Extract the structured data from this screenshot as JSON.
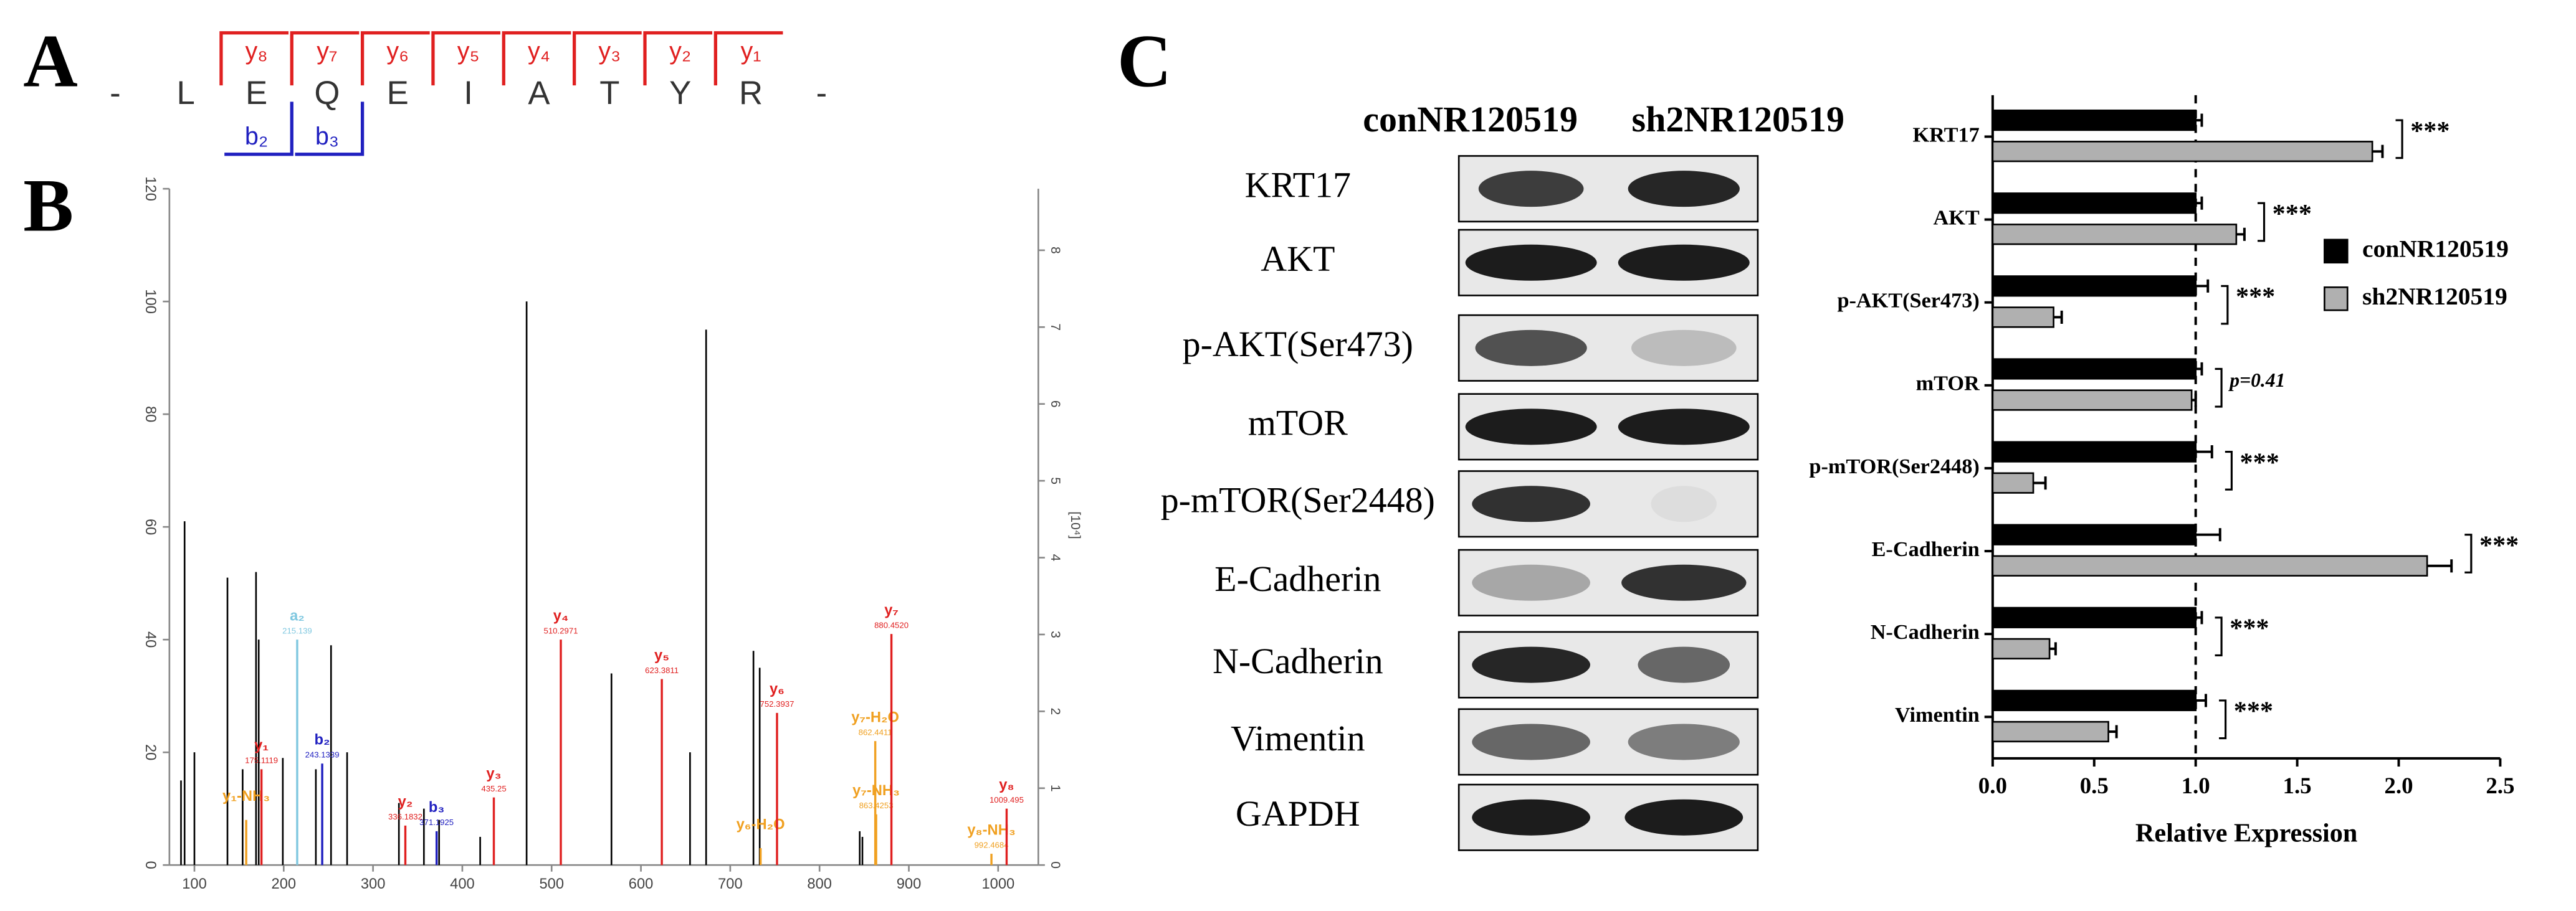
{
  "panels": [
    "A",
    "B",
    "C"
  ],
  "peptide": {
    "residues": [
      "-",
      "L",
      "E",
      "Q",
      "E",
      "I",
      "A",
      "T",
      "Y",
      "R",
      "-"
    ],
    "y_ions": [
      "y₈",
      "y₇",
      "y₆",
      "y₅",
      "y₄",
      "y₃",
      "y₂",
      "y₁"
    ],
    "b_ions": [
      "b₂",
      "b₃"
    ]
  },
  "blot": {
    "columns": [
      "conNR120519",
      "sh2NR120519"
    ],
    "rows": [
      "KRT17",
      "AKT",
      "p-AKT(Ser473)",
      "mTOR",
      "p-mTOR(Ser2448)",
      "E-Cadherin",
      "N-Cadherin",
      "Vimentin",
      "GAPDH"
    ]
  },
  "chart_data": [
    {
      "type": "spectrum",
      "y2_label": "[10⁴]",
      "xlim": [
        72,
        1045
      ],
      "xticks": [
        100,
        200,
        300,
        400,
        500,
        600,
        700,
        800,
        900,
        1000
      ],
      "ylim": [
        0,
        120
      ],
      "yticks": [
        0,
        20,
        40,
        60,
        80,
        100,
        120
      ],
      "y2lim": [
        0,
        8.8
      ],
      "y2ticks": [
        0,
        1,
        2,
        3,
        4,
        5,
        6,
        7,
        8
      ],
      "series": [
        {
          "color": "#000000",
          "x": [
            85,
            89,
            100,
            137,
            154,
            169,
            172,
            199,
            236,
            253,
            271,
            329,
            357,
            374,
            420,
            472,
            567,
            655,
            673,
            726,
            733,
            845,
            848
          ],
          "values": [
            15,
            61,
            20,
            51,
            17,
            52,
            40,
            19,
            17,
            39,
            20,
            11,
            10,
            8,
            5,
            100,
            34,
            20,
            95,
            38,
            35,
            6,
            5
          ]
        }
      ],
      "annotations": [
        {
          "label": "y₁-NH₃",
          "x": 158,
          "y": 8,
          "color": "#f0a020"
        },
        {
          "label": "y₁",
          "mz": "175.1119",
          "x": 175.1,
          "y": 17,
          "color": "#e02020"
        },
        {
          "label": "a₂",
          "mz": "215.139",
          "x": 215.1,
          "y": 40,
          "color": "#80c8e0"
        },
        {
          "label": "b₂",
          "mz": "243.1339",
          "x": 243.1,
          "y": 18,
          "color": "#2020c0"
        },
        {
          "label": "y₂",
          "mz": "336.1832",
          "x": 336.2,
          "y": 7,
          "color": "#e02020"
        },
        {
          "label": "b₃",
          "mz": "371.1925",
          "x": 371.2,
          "y": 6,
          "color": "#2020c0"
        },
        {
          "label": "y₃",
          "mz": "435.25",
          "x": 435.3,
          "y": 12,
          "color": "#e02020"
        },
        {
          "label": "y₄",
          "mz": "510.2971",
          "x": 510.3,
          "y": 40,
          "color": "#e02020"
        },
        {
          "label": "y₅",
          "mz": "623.3811",
          "x": 623.4,
          "y": 33,
          "color": "#e02020"
        },
        {
          "label": "y₆-H₂O",
          "x": 734,
          "y": 3,
          "color": "#f0a020"
        },
        {
          "label": "y₆",
          "mz": "752.3937",
          "x": 752.4,
          "y": 27,
          "color": "#e02020"
        },
        {
          "label": "y₇-NH₃",
          "mz": "863.4253",
          "x": 863.4,
          "y": 9,
          "color": "#f0a020"
        },
        {
          "label": "y₇-H₂O",
          "mz": "862.4411",
          "x": 862.4,
          "y": 22,
          "color": "#f0a020"
        },
        {
          "label": "y₇",
          "mz": "880.4520",
          "x": 880.5,
          "y": 41,
          "color": "#e02020"
        },
        {
          "label": "y₈-NH₃",
          "mz": "992.4684",
          "x": 992.5,
          "y": 2,
          "color": "#f0a020"
        },
        {
          "label": "y₈",
          "mz": "1009.495",
          "x": 1009.5,
          "y": 10,
          "color": "#e02020"
        }
      ]
    },
    {
      "type": "hbar",
      "xlabel": "Relative Expression",
      "categories": [
        "KRT17",
        "AKT",
        "p-AKT(Ser473)",
        "mTOR",
        "p-mTOR(Ser2448)",
        "E-Cadherin",
        "N-Cadherin",
        "Vimentin"
      ],
      "series": [
        {
          "name": "conNR120519",
          "color": "#000000",
          "values": [
            1,
            1,
            1,
            1,
            1,
            1,
            1,
            1
          ],
          "errors": [
            0.03,
            0.03,
            0.06,
            0.03,
            0.08,
            0.12,
            0.03,
            0.05
          ]
        },
        {
          "name": "sh2NR120519",
          "color": "#b0b0b0",
          "values": [
            1.87,
            1.2,
            0.3,
            0.98,
            0.2,
            2.14,
            0.28,
            0.57
          ],
          "errors": [
            0.05,
            0.04,
            0.04,
            0.02,
            0.06,
            0.12,
            0.03,
            0.04
          ]
        }
      ],
      "significance": [
        "***",
        "***",
        "***",
        "p=0.41",
        "***",
        "***",
        "***",
        "***"
      ],
      "xlim": [
        0,
        2.5
      ],
      "xticks": [
        {
          "value": 0,
          "label": "0.0"
        },
        0.5,
        {
          "value": 1,
          "label": "1.0"
        },
        1.5,
        {
          "value": 2,
          "label": "2.0"
        },
        2.5
      ],
      "reference_line": 1
    }
  ]
}
